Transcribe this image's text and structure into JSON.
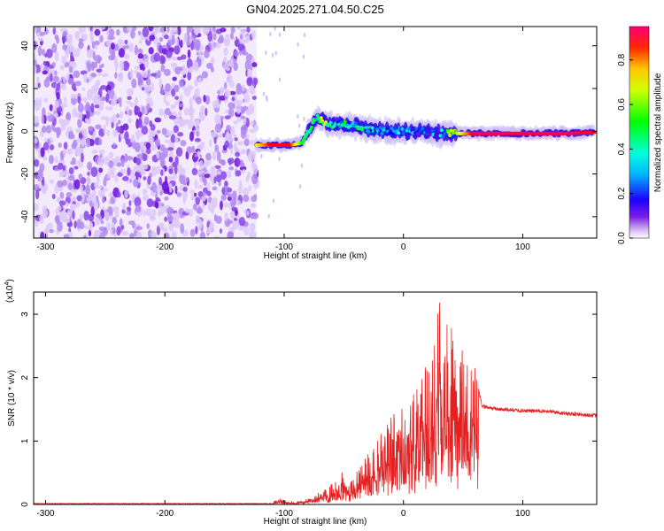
{
  "title": "GN04.2025.271.04.50.C25",
  "chart_data": [
    {
      "type": "heatmap",
      "xlabel": "Height of straight line (km)",
      "ylabel": "Frequency (Hz)",
      "xlim": [
        -310,
        162
      ],
      "ylim": [
        -50,
        49
      ],
      "xticks": [
        -300,
        -200,
        -100,
        0,
        100
      ],
      "xtick_labels": [
        "-300",
        "-200",
        "-100",
        "0",
        "100"
      ],
      "yticks": [
        -40,
        -20,
        0,
        20,
        40
      ],
      "ytick_labels": [
        "-40",
        "-20",
        "0",
        "20",
        "40"
      ],
      "colorbar": {
        "label": "Normalized spectral amplitude",
        "range": [
          0,
          0.95
        ],
        "ticks": [
          0.0,
          0.2,
          0.4,
          0.6,
          0.8
        ],
        "tick_labels": [
          "0.0",
          "0.2",
          "0.4",
          "0.6",
          "0.8"
        ],
        "colormap": [
          "#ffffff",
          "#e6d2fa",
          "#b48cf0",
          "#8c46e6",
          "#6400d2",
          "#0000ff",
          "#0096ff",
          "#00ffff",
          "#00ff64",
          "#00ff00",
          "#c8ff00",
          "#ffff00",
          "#ff9600",
          "#ff0000",
          "#ff0078"
        ]
      },
      "noise_region_x": [
        -310,
        -123
      ],
      "ridge": [
        {
          "x": -123,
          "y": -6.5,
          "amp": 0.75
        },
        {
          "x": -110,
          "y": -6.5,
          "amp": 0.9
        },
        {
          "x": -95,
          "y": -6.5,
          "amp": 0.9
        },
        {
          "x": -85,
          "y": -5.5,
          "amp": 0.6
        },
        {
          "x": -78,
          "y": 2,
          "amp": 0.5
        },
        {
          "x": -72,
          "y": 6,
          "amp": 0.7
        },
        {
          "x": -60,
          "y": 3,
          "amp": 0.55
        },
        {
          "x": -45,
          "y": 3,
          "amp": 0.5
        },
        {
          "x": -30,
          "y": 1,
          "amp": 0.5
        },
        {
          "x": -15,
          "y": 0,
          "amp": 0.45
        },
        {
          "x": 0,
          "y": 0,
          "amp": 0.4
        },
        {
          "x": 15,
          "y": 0,
          "amp": 0.4
        },
        {
          "x": 30,
          "y": -1,
          "amp": 0.4
        },
        {
          "x": 45,
          "y": -1,
          "amp": 0.7
        },
        {
          "x": 60,
          "y": -1,
          "amp": 0.92
        },
        {
          "x": 80,
          "y": -1,
          "amp": 0.92
        },
        {
          "x": 100,
          "y": -1,
          "amp": 0.92
        },
        {
          "x": 120,
          "y": -1,
          "amp": 0.92
        },
        {
          "x": 140,
          "y": -1,
          "amp": 0.92
        },
        {
          "x": 160,
          "y": -0.5,
          "amp": 0.9
        }
      ]
    },
    {
      "type": "line",
      "xlabel": "Height of straight line (km)",
      "ylabel": "SNR (10 * v/v)",
      "yscale_label": "(x10",
      "yscale_exp": "4",
      "yscale_close": ")",
      "xlim": [
        -310,
        162
      ],
      "ylim": [
        0,
        3.35
      ],
      "xticks": [
        -300,
        -200,
        -100,
        0,
        100
      ],
      "xtick_labels": [
        "-300",
        "-200",
        "-100",
        "0",
        "100"
      ],
      "yticks": [
        0,
        1,
        2,
        3
      ],
      "ytick_labels": [
        "0",
        "1",
        "2",
        "3"
      ],
      "color": "#e62020",
      "series": [
        {
          "x": [
            -310,
            -200,
            -130,
            -110,
            -105,
            -100,
            -95,
            -85,
            -80,
            -75,
            -70,
            -65,
            -60,
            -55,
            -50,
            -45,
            -40,
            -35,
            -30,
            -25,
            -20,
            -15,
            -10,
            -5,
            0,
            5,
            10,
            15,
            20,
            25,
            30,
            35,
            40,
            45,
            50,
            55,
            60,
            63,
            66,
            80,
            100,
            120,
            140,
            162
          ],
          "y": [
            0.01,
            0.01,
            0.01,
            0.02,
            0.1,
            0.08,
            0.05,
            0.05,
            0.1,
            0.15,
            0.2,
            0.3,
            0.35,
            0.5,
            0.55,
            0.3,
            0.6,
            0.7,
            0.8,
            0.9,
            1.1,
            1.2,
            1.5,
            1.35,
            1.6,
            1.7,
            1.8,
            2.0,
            2.3,
            2.6,
            3.3,
            2.8,
            3.0,
            2.5,
            2.6,
            2.3,
            2.2,
            1.8,
            1.55,
            1.5,
            1.48,
            1.47,
            1.43,
            1.4
          ]
        }
      ]
    }
  ]
}
